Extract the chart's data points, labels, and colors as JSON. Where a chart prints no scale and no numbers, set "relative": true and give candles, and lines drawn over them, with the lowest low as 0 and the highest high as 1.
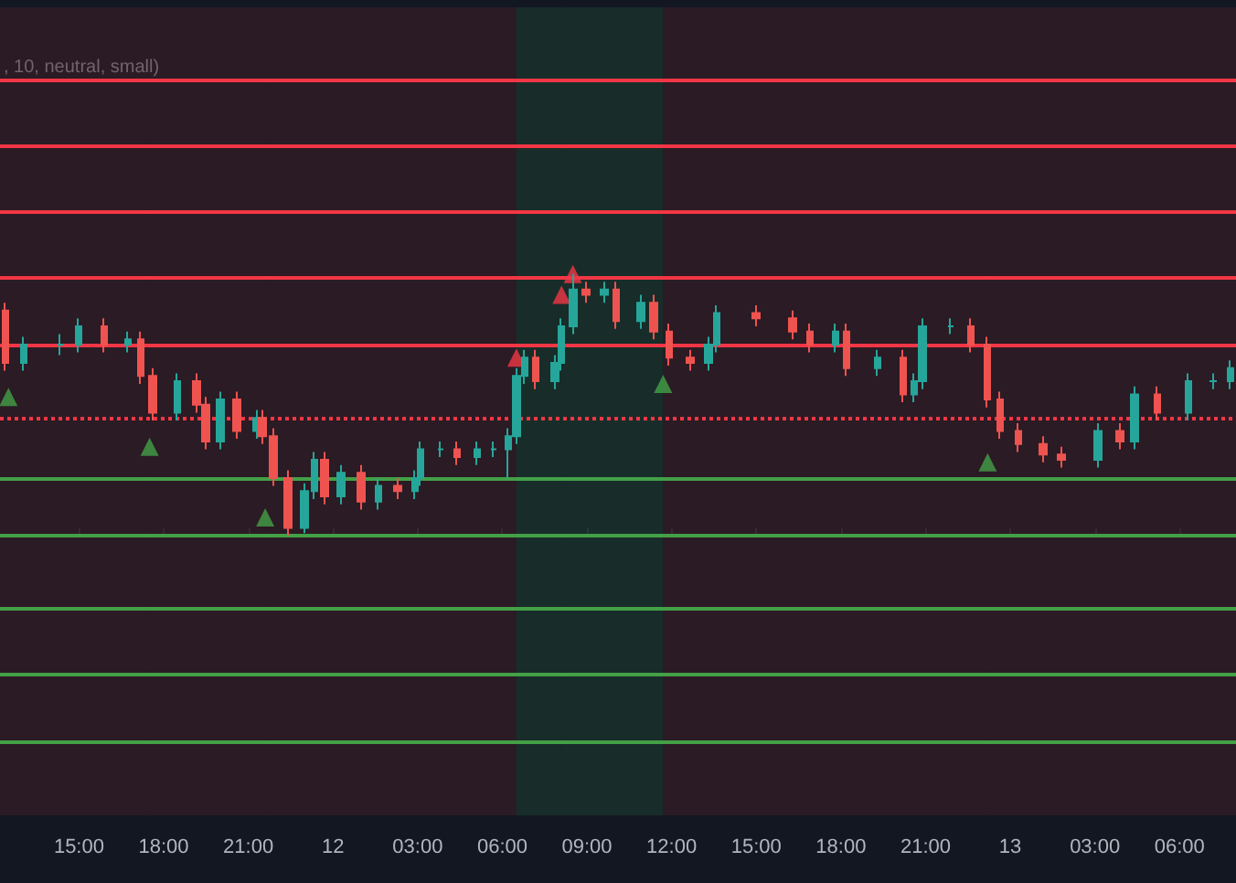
{
  "chart_data": {
    "type": "candlestick",
    "relative": true,
    "grid": false,
    "annotations": [
      ", 10, neutral, small)"
    ],
    "xlim": [
      "--01-11T12:12",
      "--01-13T08:00"
    ],
    "xticks": [
      {
        "value": "--01-11T15:00",
        "label": "15:00"
      },
      {
        "value": "--01-11T18:00",
        "label": "18:00"
      },
      {
        "value": "--01-11T21:00",
        "label": "21:00"
      },
      {
        "value": "--01-12T00:00",
        "label": "12"
      },
      {
        "value": "--01-12T03:00",
        "label": "03:00"
      },
      {
        "value": "--01-12T06:00",
        "label": "06:00"
      },
      {
        "value": "--01-12T09:00",
        "label": "09:00"
      },
      {
        "value": "--01-12T12:00",
        "label": "12:00"
      },
      {
        "value": "--01-12T15:00",
        "label": "15:00"
      },
      {
        "value": "--01-12T18:00",
        "label": "18:00"
      },
      {
        "value": "--01-12T21:00",
        "label": "21:00"
      },
      {
        "value": "--01-13T00:00",
        "label": "13"
      },
      {
        "value": "--01-13T03:00",
        "label": "03:00"
      },
      {
        "value": "--01-13T06:00",
        "label": "06:00"
      }
    ],
    "tick_labels": "x",
    "x": [
      "--01-11T12:24",
      "--01-11T13:03",
      "--01-11T14:21",
      "--01-11T15:00",
      "--01-11T15:54",
      "--01-11T16:45",
      "--01-11T17:12",
      "--01-11T17:36",
      "--01-11T18:30",
      "--01-11T19:09",
      "--01-11T19:30",
      "--01-11T20:00",
      "--01-11T20:36",
      "--01-11T21:18",
      "--01-11T21:30",
      "--01-11T21:54",
      "--01-11T22:24",
      "--01-11T23:00",
      "--01-11T23:21",
      "--01-11T23:42",
      "--01-12T00:18",
      "--01-12T01:00",
      "--01-12T01:36",
      "--01-12T02:18",
      "--01-12T02:54",
      "--01-12T03:06",
      "--01-12T03:48",
      "--01-12T04:24",
      "--01-12T05:06",
      "--01-12T05:42",
      "--01-12T06:12",
      "--01-12T06:30",
      "--01-12T06:48",
      "--01-12T07:12",
      "--01-12T07:51",
      "--01-12T08:06",
      "--01-12T08:30",
      "--01-12T08:57",
      "--01-12T09:36",
      "--01-12T10:03",
      "--01-12T10:54",
      "--01-12T11:21",
      "--01-12T11:54",
      "--01-12T12:39",
      "--01-12T13:18",
      "--01-12T13:36",
      "--01-12T15:00",
      "--01-12T16:18",
      "--01-12T16:54",
      "--01-12T17:48",
      "--01-12T18:12",
      "--01-12T19:18",
      "--01-12T20:12",
      "--01-12T20:36",
      "--01-12T20:54",
      "--01-12T21:54",
      "--01-12T22:36",
      "--01-12T23:12",
      "--01-12T23:39",
      "--01-13T00:18",
      "--01-13T01:09",
      "--01-13T01:48",
      "--01-13T03:06",
      "--01-13T03:54",
      "--01-13T04:24",
      "--01-13T05:12",
      "--01-13T06:18",
      "--01-13T07:12",
      "--01-13T07:48"
    ],
    "ohlc": [
      [
        0.86,
        0.89,
        0.63,
        0.66
      ],
      [
        0.66,
        0.76,
        0.63,
        0.73
      ],
      [
        0.73,
        0.77,
        0.69,
        0.73
      ],
      [
        0.73,
        0.83,
        0.7,
        0.8
      ],
      [
        0.8,
        0.83,
        0.7,
        0.73
      ],
      [
        0.73,
        0.78,
        0.7,
        0.75
      ],
      [
        0.75,
        0.78,
        0.58,
        0.61
      ],
      [
        0.61,
        0.64,
        0.44,
        0.47
      ],
      [
        0.47,
        0.62,
        0.44,
        0.59
      ],
      [
        0.59,
        0.62,
        0.47,
        0.5
      ],
      [
        0.5,
        0.53,
        0.33,
        0.36
      ],
      [
        0.36,
        0.55,
        0.33,
        0.52
      ],
      [
        0.52,
        0.55,
        0.37,
        0.4
      ],
      [
        0.4,
        0.48,
        0.37,
        0.45
      ],
      [
        0.45,
        0.48,
        0.35,
        0.38
      ],
      [
        0.38,
        0.41,
        0.19,
        0.22
      ],
      [
        0.22,
        0.25,
        0,
        0.03
      ],
      [
        0.03,
        0.2,
        0.01,
        0.17
      ],
      [
        0.17,
        0.32,
        0.14,
        0.29
      ],
      [
        0.29,
        0.32,
        0.12,
        0.15
      ],
      [
        0.15,
        0.27,
        0.12,
        0.24
      ],
      [
        0.24,
        0.27,
        0.1,
        0.13
      ],
      [
        0.13,
        0.22,
        0.1,
        0.19
      ],
      [
        0.19,
        0.22,
        0.14,
        0.17
      ],
      [
        0.17,
        0.25,
        0.14,
        0.22
      ],
      [
        0.22,
        0.36,
        0.19,
        0.33
      ],
      [
        0.33,
        0.36,
        0.3,
        0.33
      ],
      [
        0.33,
        0.36,
        0.27,
        0.3
      ],
      [
        0.3,
        0.36,
        0.27,
        0.33
      ],
      [
        0.33,
        0.36,
        0.3,
        0.33
      ],
      [
        0.33,
        0.41,
        0.22,
        0.38
      ],
      [
        0.38,
        0.64,
        0.35,
        0.61
      ],
      [
        0.61,
        0.71,
        0.58,
        0.68
      ],
      [
        0.68,
        0.71,
        0.56,
        0.59
      ],
      [
        0.59,
        0.69,
        0.56,
        0.66
      ],
      [
        0.66,
        0.83,
        0.63,
        0.8
      ],
      [
        0.8,
        1,
        0.77,
        0.94
      ],
      [
        0.94,
        0.97,
        0.89,
        0.92
      ],
      [
        0.92,
        0.97,
        0.89,
        0.94
      ],
      [
        0.94,
        0.97,
        0.79,
        0.82
      ],
      [
        0.82,
        0.92,
        0.79,
        0.89
      ],
      [
        0.89,
        0.92,
        0.75,
        0.78
      ],
      [
        0.78,
        0.81,
        0.65,
        0.68
      ],
      [
        0.68,
        0.71,
        0.63,
        0.66
      ],
      [
        0.66,
        0.76,
        0.63,
        0.73
      ],
      [
        0.73,
        0.88,
        0.7,
        0.85
      ],
      [
        0.85,
        0.88,
        0.8,
        0.83
      ],
      [
        0.83,
        0.86,
        0.75,
        0.78
      ],
      [
        0.78,
        0.81,
        0.7,
        0.73
      ],
      [
        0.73,
        0.81,
        0.7,
        0.78
      ],
      [
        0.78,
        0.81,
        0.61,
        0.64
      ],
      [
        0.64,
        0.71,
        0.61,
        0.68
      ],
      [
        0.68,
        0.71,
        0.51,
        0.54
      ],
      [
        0.54,
        0.62,
        0.51,
        0.59
      ],
      [
        0.59,
        0.83,
        0.56,
        0.8
      ],
      [
        0.8,
        0.83,
        0.77,
        0.8
      ],
      [
        0.8,
        0.83,
        0.7,
        0.73
      ],
      [
        0.73,
        0.76,
        0.49,
        0.52
      ],
      [
        0.52,
        0.55,
        0.37,
        0.4
      ],
      [
        0.4,
        0.43,
        0.32,
        0.35
      ],
      [
        0.35,
        0.38,
        0.28,
        0.31
      ],
      [
        0.31,
        0.34,
        0.26,
        0.29
      ],
      [
        0.29,
        0.43,
        0.26,
        0.4
      ],
      [
        0.4,
        0.43,
        0.33,
        0.36
      ],
      [
        0.36,
        0.57,
        0.33,
        0.54
      ],
      [
        0.54,
        0.57,
        0.44,
        0.47
      ],
      [
        0.47,
        0.62,
        0.44,
        0.59
      ],
      [
        0.59,
        0.62,
        0.56,
        0.59
      ],
      [
        0.59,
        0.67,
        0.56,
        0.64
      ]
    ],
    "colors": [
      "#ef5350",
      "#26a69a",
      "#26a69a",
      "#26a69a",
      "#ef5350",
      "#26a69a",
      "#ef5350",
      "#ef5350",
      "#26a69a",
      "#ef5350",
      "#ef5350",
      "#26a69a",
      "#ef5350",
      "#26a69a",
      "#ef5350",
      "#ef5350",
      "#ef5350",
      "#26a69a",
      "#26a69a",
      "#ef5350",
      "#26a69a",
      "#ef5350",
      "#26a69a",
      "#ef5350",
      "#26a69a",
      "#26a69a",
      "#26a69a",
      "#ef5350",
      "#26a69a",
      "#26a69a",
      "#26a69a",
      "#26a69a",
      "#26a69a",
      "#ef5350",
      "#26a69a",
      "#26a69a",
      "#26a69a",
      "#ef5350",
      "#26a69a",
      "#ef5350",
      "#26a69a",
      "#ef5350",
      "#ef5350",
      "#ef5350",
      "#26a69a",
      "#26a69a",
      "#ef5350",
      "#ef5350",
      "#ef5350",
      "#26a69a",
      "#ef5350",
      "#26a69a",
      "#ef5350",
      "#26a69a",
      "#26a69a",
      "#26a69a",
      "#ef5350",
      "#ef5350",
      "#ef5350",
      "#ef5350",
      "#ef5350",
      "#ef5350",
      "#26a69a",
      "#ef5350",
      "#26a69a",
      "#ef5350",
      "#26a69a",
      "#26a69a",
      "#26a69a"
    ],
    "series": [
      {
        "type": "scatter",
        "marker": "triangle",
        "color": "#43a047",
        "x": [
          "--01-11T12:30",
          "--01-11T17:30",
          "--01-11T21:36",
          "--01-12T11:42",
          "--01-12T23:12"
        ],
        "values": [
          0.53,
          0.34,
          0.07,
          0.58,
          0.28
        ]
      },
      {
        "type": "scatter",
        "marker": "triangle",
        "color": "#f23645",
        "x": [
          "--01-12T06:30",
          "--01-12T08:06",
          "--01-12T08:30"
        ],
        "values": [
          0.68,
          0.92,
          1
        ]
      }
    ],
    "ref_lines": [
      {
        "axis": "y",
        "value": 1.74,
        "color": "#f23645"
      },
      {
        "axis": "y",
        "value": 1.49,
        "color": "#f23645"
      },
      {
        "axis": "y",
        "value": 1.24,
        "color": "#f23645"
      },
      {
        "axis": "y",
        "value": 0.99,
        "color": "#f23645"
      },
      {
        "axis": "y",
        "value": 0.73,
        "color": "#f23645"
      },
      {
        "axis": "y",
        "value": 0.45,
        "color": "#f23645",
        "line_style": "dotted"
      },
      {
        "axis": "y",
        "value": 0.22,
        "color": "#43a047"
      },
      {
        "axis": "y",
        "value": 0,
        "color": "#43a047"
      },
      {
        "axis": "y",
        "value": -0.28,
        "color": "#43a047"
      },
      {
        "axis": "y",
        "value": -0.53,
        "color": "#43a047"
      },
      {
        "axis": "y",
        "value": -0.79,
        "color": "#43a047"
      }
    ],
    "bands": [
      {
        "axis": "x",
        "from": "--01-11T12:12",
        "to": "--01-11T17:24",
        "color": "#4a2229"
      },
      {
        "axis": "x",
        "from": "--01-11T17:24",
        "to": "--01-11T21:36",
        "color": "#4a2229"
      },
      {
        "axis": "x",
        "from": "--01-11T21:36",
        "to": "--01-12T06:30",
        "color": "#4a2229"
      },
      {
        "axis": "x",
        "from": "--01-12T06:30",
        "to": "--01-12T08:06",
        "color": "#1f4a33"
      },
      {
        "axis": "x",
        "from": "--01-12T08:06",
        "to": "--01-12T11:42",
        "color": "#1f4a33"
      },
      {
        "axis": "x",
        "from": "--01-12T11:42",
        "to": "--01-12T23:12",
        "color": "#4a2229"
      },
      {
        "axis": "x",
        "from": "--01-12T23:12",
        "to": "--01-13T08:00",
        "color": "#4a2229"
      }
    ]
  }
}
